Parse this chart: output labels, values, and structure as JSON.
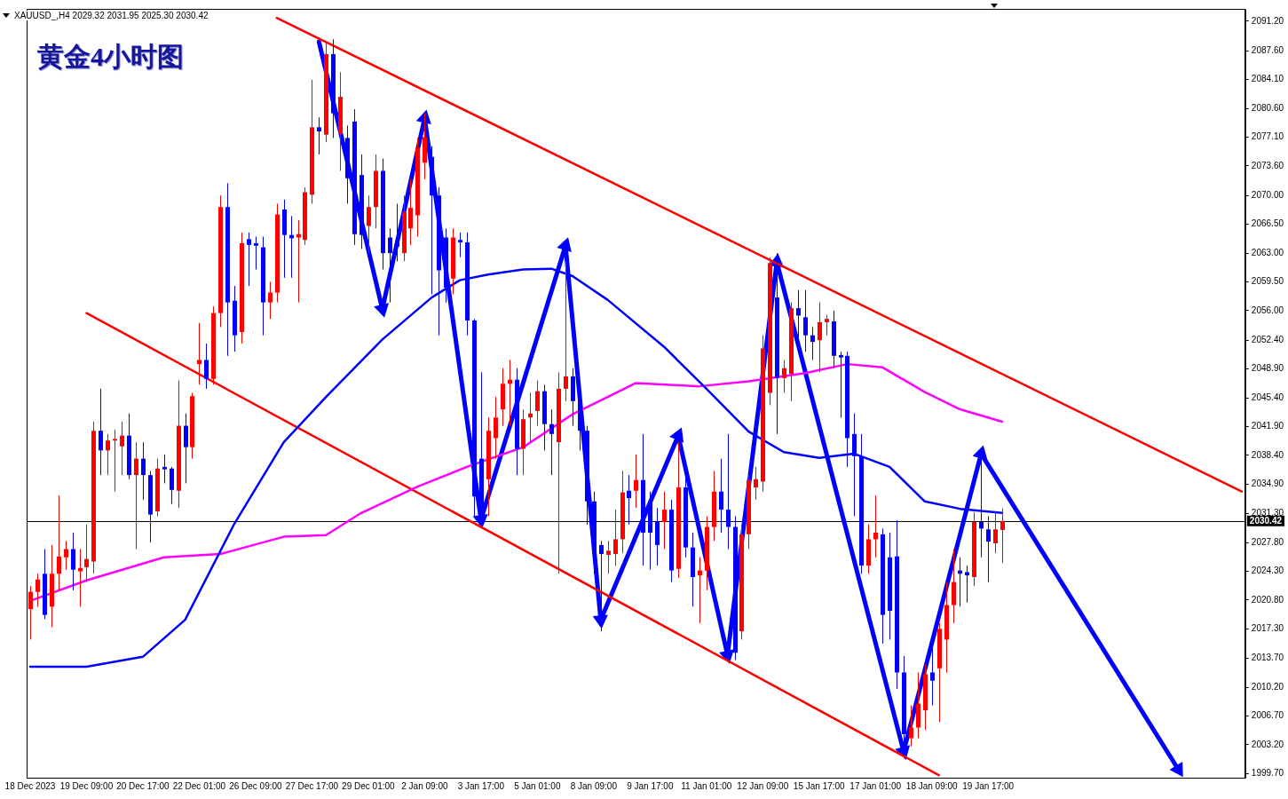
{
  "chart_data": {
    "type": "candlestick",
    "title": "黄金4小时图",
    "annotations": [
      "XAUUSD_,H4 2029.32 2031.95 2025.30 2030.42"
    ],
    "categories": [
      "18 Dec 2023",
      null,
      null,
      null,
      null,
      null,
      null,
      null,
      "19 Dec 09:00",
      null,
      null,
      null,
      null,
      null,
      null,
      null,
      "20 Dec 17:00",
      null,
      null,
      null,
      null,
      null,
      null,
      null,
      "22 Dec 01:00",
      null,
      null,
      null,
      null,
      null,
      null,
      null,
      "26 Dec 09:00",
      null,
      null,
      null,
      null,
      null,
      null,
      null,
      "27 Dec 17:00",
      null,
      null,
      null,
      null,
      null,
      null,
      null,
      "29 Dec 01:00",
      null,
      null,
      null,
      null,
      null,
      null,
      null,
      "2 Jan 09:00",
      null,
      null,
      null,
      null,
      null,
      null,
      null,
      "3 Jan 17:00",
      null,
      null,
      null,
      null,
      null,
      null,
      null,
      "5 Jan 01:00",
      null,
      null,
      null,
      null,
      null,
      null,
      null,
      "8 Jan 09:00",
      null,
      null,
      null,
      null,
      null,
      null,
      null,
      "9 Jan 17:00",
      null,
      null,
      null,
      null,
      null,
      null,
      null,
      "11 Jan 01:00",
      null,
      null,
      null,
      null,
      null,
      null,
      null,
      "12 Jan 09:00",
      null,
      null,
      null,
      null,
      null,
      null,
      null,
      "15 Jan 17:00",
      null,
      null,
      null,
      null,
      null,
      null,
      null,
      "17 Jan 01:00",
      null,
      null,
      null,
      null,
      null,
      null,
      null,
      "18 Jan 09:00",
      null,
      null,
      null,
      null,
      null,
      null,
      null,
      "19 Jan 17:00",
      null,
      null,
      null,
      null,
      null,
      null,
      null,
      null,
      null,
      null,
      null,
      null,
      null,
      null,
      null,
      null,
      null,
      null,
      null,
      null,
      null,
      null,
      null,
      null,
      null,
      null,
      null,
      null,
      null,
      null,
      null,
      null,
      null,
      null,
      null,
      null
    ],
    "ohlc": [
      [
        2019.7,
        2022.5,
        2016.0,
        2021.8
      ],
      [
        2021.8,
        2024.0,
        2020.0,
        2023.3
      ],
      [
        2024.0,
        2027.0,
        2018.5,
        2019.0
      ],
      [
        2020.0,
        2027.5,
        2017.5,
        2024.0
      ],
      [
        2024.0,
        2033.5,
        2022.0,
        2026.1
      ],
      [
        2026.0,
        2028.0,
        2024.5,
        2027.0
      ],
      [
        2027.0,
        2029.0,
        2022.0,
        2024.5
      ],
      [
        2024.3,
        2027.0,
        2020.0,
        2024.7
      ],
      [
        2024.8,
        2030.0,
        2023.0,
        2025.8
      ],
      [
        2025.5,
        2042.5,
        2024.0,
        2041.4
      ],
      [
        2041.4,
        2046.5,
        2036.0,
        2039.0
      ],
      [
        2039.0,
        2041.0,
        2036.0,
        2040.2
      ],
      [
        2040.2,
        2041.5,
        2034.0,
        2040.4
      ],
      [
        2039.5,
        2042.5,
        2036.0,
        2040.8
      ],
      [
        2040.8,
        2043.5,
        2035.5,
        2036.0
      ],
      [
        2036.0,
        2040.0,
        2027.0,
        2038.0
      ],
      [
        2038.0,
        2040.0,
        2033.0,
        2036.0
      ],
      [
        2036.0,
        2036.5,
        2027.8,
        2031.2
      ],
      [
        2031.6,
        2038.0,
        2031.0,
        2036.8
      ],
      [
        2037.0,
        2038.5,
        2035.0,
        2036.7
      ],
      [
        2036.8,
        2037.0,
        2032.5,
        2034.2
      ],
      [
        2034.1,
        2047.5,
        2032.0,
        2042.0
      ],
      [
        2042.0,
        2043.5,
        2035.0,
        2039.4
      ],
      [
        2039.4,
        2046.0,
        2038.0,
        2045.6
      ],
      [
        2049.5,
        2054.5,
        2047.0,
        2050.0
      ],
      [
        2050.0,
        2052.0,
        2046.5,
        2047.7
      ],
      [
        2047.7,
        2056.5,
        2047.0,
        2055.7
      ],
      [
        2055.7,
        2070.0,
        2054.0,
        2068.6
      ],
      [
        2068.6,
        2071.5,
        2050.5,
        2057.0
      ],
      [
        2057.2,
        2059.0,
        2051.0,
        2053.0
      ],
      [
        2053.4,
        2065.5,
        2052.0,
        2064.2
      ],
      [
        2064.7,
        2065.5,
        2059.0,
        2064.0
      ],
      [
        2064.2,
        2065.0,
        2061.0,
        2063.9
      ],
      [
        2063.7,
        2065.0,
        2053.0,
        2057.0
      ],
      [
        2057.0,
        2059.5,
        2055.0,
        2058.2
      ],
      [
        2058.2,
        2069.0,
        2057.0,
        2067.7
      ],
      [
        2068.3,
        2069.5,
        2060.0,
        2065.2
      ],
      [
        2065.2,
        2067.5,
        2060.0,
        2064.8
      ],
      [
        2064.9,
        2067.0,
        2057.0,
        2065.3
      ],
      [
        2064.6,
        2071.0,
        2064.0,
        2070.4
      ],
      [
        2070.1,
        2084.1,
        2069.0,
        2078.3
      ],
      [
        2078.3,
        2079.5,
        2075.0,
        2077.8
      ],
      [
        2077.4,
        2088.5,
        2076.5,
        2087.2
      ],
      [
        2087.2,
        2089.0,
        2077.0,
        2080.0
      ],
      [
        2077.5,
        2085.0,
        2073.0,
        2082.0
      ],
      [
        2077.0,
        2078.5,
        2069.0,
        2072.1
      ],
      [
        2079.0,
        2080.5,
        2064.0,
        2065.3
      ],
      [
        2072.5,
        2075.0,
        2063.5,
        2065.2
      ],
      [
        2066.3,
        2070.0,
        2063.0,
        2068.6
      ],
      [
        2068.6,
        2075.0,
        2066.0,
        2073.0
      ],
      [
        2073.0,
        2074.5,
        2061.0,
        2063.0
      ],
      [
        2064.9,
        2066.0,
        2057.0,
        2063.0
      ],
      [
        2064.5,
        2069.0,
        2062.0,
        2063.8
      ],
      [
        2063.0,
        2070.0,
        2062.0,
        2068.0
      ],
      [
        2066.0,
        2072.0,
        2064.0,
        2068.5
      ],
      [
        2067.6,
        2077.0,
        2065.0,
        2075.8
      ],
      [
        2074.0,
        2080.0,
        2072.0,
        2077.1
      ],
      [
        2074.7,
        2076.0,
        2058.0,
        2070.0
      ],
      [
        2070.0,
        2071.0,
        2053.0,
        2060.9
      ],
      [
        2064.9,
        2066.0,
        2057.0,
        2058.8
      ],
      [
        2059.9,
        2066.0,
        2058.0,
        2064.9
      ],
      [
        2064.6,
        2065.5,
        2062.5,
        2064.3
      ],
      [
        2064.3,
        2065.5,
        2053.0,
        2054.8
      ],
      [
        2054.8,
        2055.0,
        2031.0,
        2033.4
      ],
      [
        2038.0,
        2048.5,
        2030.0,
        2032.0
      ],
      [
        2035.5,
        2043.0,
        2031.0,
        2041.4
      ],
      [
        2040.5,
        2045.5,
        2038.0,
        2043.0
      ],
      [
        2044.0,
        2049.0,
        2042.0,
        2047.1
      ],
      [
        2047.1,
        2050.0,
        2042.0,
        2047.6
      ],
      [
        2047.6,
        2049.0,
        2036.0,
        2039.2
      ],
      [
        2039.2,
        2044.0,
        2036.0,
        2042.8
      ],
      [
        2043.0,
        2046.0,
        2040.0,
        2043.5
      ],
      [
        2043.8,
        2047.5,
        2042.0,
        2046.2
      ],
      [
        2046.2,
        2047.0,
        2039.0,
        2042.2
      ],
      [
        2042.2,
        2044.0,
        2036.0,
        2041.0
      ],
      [
        2040.0,
        2048.5,
        2024.0,
        2046.5
      ],
      [
        2046.5,
        2062.0,
        2045.0,
        2048.0
      ],
      [
        2048.0,
        2049.0,
        2042.0,
        2045.0
      ],
      [
        2045.0,
        2046.0,
        2039.0,
        2041.4
      ],
      [
        2041.4,
        2042.0,
        2030.0,
        2032.8
      ],
      [
        2032.8,
        2034.0,
        2024.0,
        2026.5
      ],
      [
        2027.5,
        2028.0,
        2017.0,
        2026.4
      ],
      [
        2026.3,
        2028.0,
        2024.0,
        2026.8
      ],
      [
        2026.4,
        2031.8,
        2025.0,
        2028.2
      ],
      [
        2028.2,
        2036.5,
        2026.5,
        2033.9
      ],
      [
        2034.1,
        2036.0,
        2030.0,
        2033.2
      ],
      [
        2034.1,
        2038.5,
        2032.0,
        2035.4
      ],
      [
        2035.4,
        2041.0,
        2025.0,
        2029.0
      ],
      [
        2032.8,
        2034.0,
        2024.5,
        2029.0
      ],
      [
        2030.3,
        2032.0,
        2025.0,
        2027.5
      ],
      [
        2030.3,
        2034.0,
        2027.0,
        2031.8
      ],
      [
        2031.8,
        2033.0,
        2023.0,
        2024.4
      ],
      [
        2024.6,
        2040.0,
        2023.5,
        2034.5
      ],
      [
        2034.5,
        2036.0,
        2026.0,
        2027.2
      ],
      [
        2027.2,
        2029.0,
        2020.0,
        2023.6
      ],
      [
        2023.8,
        2026.0,
        2018.0,
        2024.4
      ],
      [
        2024.4,
        2031.0,
        2022.0,
        2029.7
      ],
      [
        2029.7,
        2036.5,
        2028.0,
        2034.0
      ],
      [
        2034.0,
        2038.0,
        2029.0,
        2031.8
      ],
      [
        2031.8,
        2041.0,
        2027.0,
        2029.7
      ],
      [
        2029.7,
        2031.0,
        2013.5,
        2014.4
      ],
      [
        2017.0,
        2030.0,
        2016.0,
        2028.8
      ],
      [
        2028.8,
        2036.0,
        2027.0,
        2035.4
      ],
      [
        2034.5,
        2037.0,
        2033.0,
        2035.5
      ],
      [
        2035.2,
        2053.0,
        2034.0,
        2051.4
      ],
      [
        2046.0,
        2062.5,
        2044.5,
        2061.8
      ],
      [
        2057.6,
        2063.0,
        2041.0,
        2047.8
      ],
      [
        2047.8,
        2050.0,
        2046.0,
        2049.0
      ],
      [
        2048.3,
        2057.0,
        2045.0,
        2056.3
      ],
      [
        2056.3,
        2058.5,
        2052.0,
        2055.4
      ],
      [
        2055.2,
        2058.5,
        2051.0,
        2053.0
      ],
      [
        2053.0,
        2054.0,
        2050.0,
        2052.2
      ],
      [
        2052.4,
        2057.0,
        2048.5,
        2054.6
      ],
      [
        2054.6,
        2055.5,
        2053.0,
        2055.0
      ],
      [
        2054.7,
        2056.0,
        2049.0,
        2050.5
      ],
      [
        2050.6,
        2051.0,
        2043.0,
        2050.3
      ],
      [
        2050.5,
        2051.0,
        2037.0,
        2040.5
      ],
      [
        2041.0,
        2043.5,
        2031.0,
        2038.3
      ],
      [
        2038.3,
        2041.0,
        2024.0,
        2025.0
      ],
      [
        2025.0,
        2030.0,
        2024.0,
        2028.2
      ],
      [
        2028.2,
        2033.5,
        2026.0,
        2029.0
      ],
      [
        2028.8,
        2029.5,
        2015.5,
        2019.0
      ],
      [
        2026.0,
        2029.0,
        2016.0,
        2019.5
      ],
      [
        2026.1,
        2030.5,
        2010.0,
        2012.0
      ],
      [
        2012.0,
        2014.0,
        2003.0,
        2004.5
      ],
      [
        2004.0,
        2008.0,
        2003.0,
        2005.3
      ],
      [
        2005.3,
        2012.0,
        2004.0,
        2008.2
      ],
      [
        2007.4,
        2013.0,
        2005.0,
        2011.8
      ],
      [
        2012.0,
        2015.0,
        2008.0,
        2011.0
      ],
      [
        2012.5,
        2018.0,
        2006.0,
        2017.3
      ],
      [
        2016.0,
        2023.0,
        2012.0,
        2020.2
      ],
      [
        2020.2,
        2027.0,
        2018.0,
        2023.0
      ],
      [
        2024.4,
        2026.0,
        2020.0,
        2024.0
      ],
      [
        2024.2,
        2025.0,
        2020.5,
        2023.8
      ],
      [
        2023.6,
        2031.5,
        2022.5,
        2030.3
      ],
      [
        2030.3,
        2038.5,
        2026.0,
        2029.5
      ],
      [
        2029.4,
        2031.0,
        2023.0,
        2027.9
      ],
      [
        2027.7,
        2031.5,
        2026.5,
        2029.4
      ],
      [
        2029.32,
        2031.95,
        2025.3,
        2030.42
      ],
      null,
      null,
      null,
      null,
      null,
      null,
      null,
      null,
      null,
      null,
      null,
      null,
      null,
      null,
      null,
      null,
      null,
      null,
      null,
      null,
      null,
      null,
      null,
      null,
      null,
      null,
      null,
      null,
      null,
      null,
      null,
      null,
      null,
      null
    ],
    "colors": [
      "#ff0000",
      "#ff0000",
      "#0000ff",
      "#ff0000",
      "#ff0000",
      "#ff0000",
      "#0000ff",
      "#ff0000",
      "#ff0000",
      "#ff0000",
      "#0000ff",
      "#ff0000",
      "#ff0000",
      "#ff0000",
      "#0000ff",
      "#ff0000",
      "#0000ff",
      "#0000ff",
      "#ff0000",
      "#0000ff",
      "#0000ff",
      "#ff0000",
      "#0000ff",
      "#ff0000",
      "#ff0000",
      "#0000ff",
      "#ff0000",
      "#ff0000",
      "#0000ff",
      "#0000ff",
      "#ff0000",
      "#0000ff",
      "#0000ff",
      "#0000ff",
      "#ff0000",
      "#ff0000",
      "#0000ff",
      "#0000ff",
      "#ff0000",
      "#ff0000",
      "#ff0000",
      "#0000ff",
      "#ff0000",
      "#0000ff",
      "#ff0000",
      "#0000ff",
      "#0000ff",
      "#0000ff",
      "#ff0000",
      "#ff0000",
      "#0000ff",
      "#0000ff",
      "#0000ff",
      "#ff0000",
      "#ff0000",
      "#ff0000",
      "#ff0000",
      "#0000ff",
      "#0000ff",
      "#0000ff",
      "#ff0000",
      "#0000ff",
      "#0000ff",
      "#0000ff",
      "#0000ff",
      "#ff0000",
      "#ff0000",
      "#ff0000",
      "#ff0000",
      "#0000ff",
      "#ff0000",
      "#ff0000",
      "#ff0000",
      "#0000ff",
      "#0000ff",
      "#ff0000",
      "#ff0000",
      "#0000ff",
      "#0000ff",
      "#0000ff",
      "#0000ff",
      "#0000ff",
      "#ff0000",
      "#ff0000",
      "#ff0000",
      "#0000ff",
      "#ff0000",
      "#0000ff",
      "#0000ff",
      "#0000ff",
      "#ff0000",
      "#0000ff",
      "#ff0000",
      "#0000ff",
      "#0000ff",
      "#ff0000",
      "#ff0000",
      "#ff0000",
      "#0000ff",
      "#0000ff",
      "#0000ff",
      "#ff0000",
      "#ff0000",
      "#ff0000",
      "#ff0000",
      "#ff0000",
      "#0000ff",
      "#ff0000",
      "#ff0000",
      "#0000ff",
      "#0000ff",
      "#0000ff",
      "#ff0000",
      "#ff0000",
      "#0000ff",
      "#0000ff",
      "#0000ff",
      "#0000ff",
      "#0000ff",
      "#ff0000",
      "#ff0000",
      "#0000ff",
      "#0000ff",
      "#0000ff",
      "#0000ff",
      "#ff0000",
      "#ff0000",
      "#ff0000",
      "#0000ff",
      "#ff0000",
      "#ff0000",
      "#ff0000",
      "#0000ff",
      "#0000ff",
      "#ff0000",
      "#0000ff",
      "#0000ff",
      "#ff0000",
      "#ff0000",
      null,
      null,
      null,
      null,
      null,
      null,
      null,
      null,
      null,
      null,
      null,
      null,
      null,
      null,
      null,
      null,
      null,
      null,
      null,
      null,
      null,
      null,
      null,
      null,
      null,
      null,
      null,
      null,
      null,
      null,
      null,
      null,
      null,
      null
    ],
    "series": [
      {
        "type": "line",
        "color": "#0000ff",
        "values": [
          2012.7,
          null,
          null,
          null,
          null,
          null,
          null,
          null,
          2012.7,
          null,
          null,
          null,
          null,
          null,
          null,
          null,
          2013.9,
          null,
          null,
          null,
          null,
          null,
          2018.4,
          null,
          null,
          null,
          null,
          null,
          null,
          2030.1,
          null,
          null,
          null,
          null,
          null,
          null,
          2040.0,
          null,
          null,
          null,
          null,
          null,
          2045.5,
          null,
          null,
          null,
          null,
          null,
          null,
          null,
          2052.5,
          null,
          null,
          null,
          null,
          null,
          null,
          2057.6,
          null,
          null,
          null,
          2059.7,
          null,
          null,
          null,
          2060.4,
          null,
          null,
          null,
          null,
          2061.0,
          null,
          null,
          null,
          2061.1,
          null,
          null,
          2060.2,
          null,
          null,
          null,
          null,
          2057.3,
          null,
          null,
          null,
          null,
          null,
          null,
          null,
          2051.6,
          null,
          null,
          null,
          null,
          null,
          2046.5,
          null,
          null,
          null,
          null,
          null,
          2041.3,
          null,
          null,
          null,
          null,
          2038.8,
          null,
          null,
          null,
          null,
          2038.1,
          null,
          null,
          null,
          null,
          2038.6,
          null,
          null,
          null,
          null,
          2037.0,
          null,
          null,
          null,
          null,
          2032.8,
          null,
          null,
          null,
          null,
          2031.9,
          null,
          null,
          null,
          null,
          null,
          2031.4,
          null,
          null,
          null,
          null,
          null,
          null,
          null,
          null,
          null,
          null,
          null,
          null,
          null,
          null,
          null,
          null,
          null,
          null,
          null,
          null,
          null,
          null,
          null,
          null,
          null,
          null,
          null,
          null,
          null,
          null,
          null,
          null,
          null,
          null
        ]
      },
      {
        "type": "line",
        "color": "#ff00ff",
        "values": [
          2020.7,
          null,
          null,
          null,
          null,
          null,
          null,
          null,
          2023.2,
          null,
          null,
          null,
          null,
          null,
          null,
          null,
          null,
          null,
          null,
          2026.0,
          null,
          null,
          null,
          null,
          null,
          null,
          null,
          2026.4,
          null,
          null,
          null,
          null,
          null,
          null,
          null,
          null,
          2028.5,
          null,
          null,
          null,
          null,
          null,
          2028.7,
          null,
          null,
          null,
          null,
          2031.4,
          null,
          null,
          null,
          null,
          null,
          null,
          null,
          2034.6,
          null,
          null,
          null,
          null,
          null,
          null,
          2037.0,
          null,
          null,
          null,
          null,
          null,
          null,
          null,
          2039.4,
          null,
          null,
          null,
          null,
          null,
          null,
          2043.4,
          null,
          null,
          null,
          null,
          null,
          null,
          null,
          null,
          2047.2,
          null,
          null,
          null,
          null,
          null,
          null,
          null,
          null,
          2046.8,
          null,
          null,
          null,
          null,
          null,
          null,
          2047.4,
          null,
          null,
          null,
          null,
          null,
          null,
          null,
          2048.4,
          null,
          null,
          null,
          null,
          null,
          2049.5,
          null,
          null,
          null,
          null,
          2049.1,
          null,
          null,
          null,
          null,
          null,
          2046.1,
          null,
          null,
          null,
          null,
          2044.0,
          null,
          null,
          null,
          null,
          null,
          2042.5,
          null,
          null,
          null,
          null,
          null,
          null,
          null,
          null,
          null,
          null,
          null,
          null,
          null,
          null,
          null,
          null,
          null,
          null,
          null,
          null,
          null,
          null,
          null,
          null,
          null,
          null,
          null,
          null,
          null,
          null,
          null,
          null,
          null,
          null
        ]
      },
      {
        "type": "line",
        "color": "#ff0000",
        "values": [
          null,
          null,
          null,
          null,
          null,
          null,
          null,
          null,
          null,
          null,
          null,
          null,
          null,
          null,
          null,
          null,
          null,
          null,
          null,
          null,
          null,
          null,
          null,
          null,
          null,
          null,
          null,
          null,
          null,
          null,
          null,
          null,
          null,
          null,
          null,
          2091.6,
          null,
          null,
          null,
          null,
          null,
          null,
          null,
          null,
          null,
          null,
          null,
          null,
          null,
          null,
          null,
          null,
          null,
          null,
          null,
          null,
          null,
          null,
          null,
          null,
          null,
          null,
          null,
          null,
          null,
          null,
          null,
          null,
          null,
          null,
          null,
          null,
          null,
          null,
          null,
          null,
          null,
          null,
          null,
          null,
          null,
          null,
          null,
          null,
          null,
          null,
          null,
          null,
          null,
          null,
          null,
          null,
          null,
          null,
          null,
          null,
          null,
          null,
          null,
          null,
          null,
          null,
          null,
          null,
          null,
          null,
          null,
          null,
          null,
          null,
          null,
          null,
          null,
          null,
          null,
          null,
          null,
          null,
          null,
          null,
          null,
          null,
          null,
          null,
          null,
          null,
          null,
          null,
          null,
          null,
          null,
          null,
          null,
          null,
          null,
          null,
          null,
          null,
          null,
          null,
          null,
          null,
          null,
          null,
          null,
          null,
          null,
          null,
          null,
          null,
          null,
          null,
          null,
          null,
          null,
          null,
          null,
          null,
          null,
          null,
          null,
          null,
          null,
          null,
          null,
          null,
          null,
          null,
          null,
          null,
          null,
          null,
          2034.0
        ]
      },
      {
        "type": "line",
        "color": "#ff0000",
        "values": [
          null,
          null,
          null,
          null,
          null,
          null,
          null,
          null,
          2055.7,
          null,
          null,
          null,
          null,
          null,
          null,
          null,
          null,
          null,
          null,
          null,
          null,
          null,
          null,
          null,
          null,
          null,
          null,
          null,
          null,
          null,
          null,
          null,
          null,
          null,
          null,
          null,
          null,
          null,
          null,
          null,
          null,
          null,
          null,
          null,
          null,
          null,
          null,
          null,
          null,
          null,
          null,
          null,
          null,
          null,
          null,
          null,
          null,
          null,
          null,
          null,
          null,
          null,
          null,
          null,
          null,
          null,
          null,
          null,
          null,
          null,
          null,
          null,
          null,
          null,
          null,
          null,
          null,
          null,
          null,
          null,
          null,
          null,
          null,
          null,
          null,
          null,
          null,
          null,
          null,
          null,
          null,
          null,
          null,
          null,
          null,
          null,
          null,
          null,
          null,
          null,
          null,
          null,
          null,
          null,
          null,
          null,
          null,
          null,
          null,
          null,
          null,
          null,
          null,
          null,
          null,
          null,
          null,
          null,
          null,
          null,
          null,
          null,
          null,
          null,
          null,
          null,
          null,
          null,
          null,
          1999.5,
          null,
          null,
          null,
          null,
          null,
          null,
          null,
          null,
          null,
          null,
          null,
          null,
          null,
          null,
          null,
          null,
          null,
          null,
          null,
          null,
          null,
          null,
          null,
          null,
          null,
          null,
          null,
          null,
          null,
          null,
          null,
          null,
          null,
          null,
          null,
          null,
          null,
          null,
          null,
          null,
          null,
          null,
          null
        ]
      },
      {
        "type": "line",
        "color": "#0000ff",
        "marker": "triangle",
        "values": [
          null,
          null,
          null,
          null,
          null,
          null,
          null,
          null,
          null,
          null,
          null,
          null,
          null,
          null,
          null,
          null,
          null,
          null,
          null,
          null,
          null,
          null,
          null,
          null,
          null,
          null,
          null,
          null,
          null,
          null,
          null,
          null,
          null,
          null,
          null,
          null,
          null,
          null,
          null,
          null,
          null,
          2088.7,
          null,
          null,
          null,
          null,
          null,
          null,
          null,
          null,
          2056.2,
          null,
          null,
          null,
          null,
          null,
          2079.4,
          null,
          null,
          null,
          null,
          null,
          null,
          null,
          2030.6,
          null,
          null,
          null,
          null,
          null,
          null,
          null,
          null,
          null,
          null,
          null,
          2063.9,
          null,
          null,
          null,
          null,
          2018.4,
          null,
          null,
          null,
          null,
          null,
          null,
          null,
          null,
          null,
          null,
          2040.8,
          null,
          null,
          null,
          null,
          null,
          null,
          2014.1,
          null,
          null,
          null,
          null,
          null,
          null,
          2061.9,
          null,
          null,
          null,
          null,
          null,
          null,
          null,
          null,
          null,
          null,
          null,
          null,
          null,
          null,
          null,
          null,
          null,
          2002.4,
          null,
          null,
          null,
          null,
          null,
          null,
          null,
          null,
          null,
          null,
          2038.6,
          null,
          null,
          null,
          null,
          null,
          null,
          null,
          null,
          null,
          null,
          null,
          null,
          null,
          null,
          null,
          null,
          null,
          null,
          null,
          null,
          null,
          null,
          null,
          null,
          null,
          null,
          null,
          2000.2,
          null,
          null,
          null,
          null,
          null,
          null,
          null,
          null,
          null
        ]
      }
    ],
    "ylim": [
      1999.2,
      2092.7
    ],
    "yticks": [
      {
        "value": 1999.7,
        "label": "1999.70"
      },
      {
        "value": 2003.2,
        "label": "2003.20"
      },
      {
        "value": 2006.7,
        "label": "2006.70"
      },
      {
        "value": 2010.2,
        "label": "2010.20"
      },
      {
        "value": 2013.7,
        "label": "2013.70"
      },
      {
        "value": 2017.3,
        "label": "2017.30"
      },
      {
        "value": 2020.8,
        "label": "2020.80"
      },
      {
        "value": 2024.3,
        "label": "2024.30"
      },
      {
        "value": 2027.8,
        "label": "2027.80"
      },
      {
        "value": 2031.3,
        "label": "2031.30"
      },
      {
        "value": 2034.9,
        "label": "2034.90"
      },
      {
        "value": 2038.4,
        "label": "2038.40"
      },
      {
        "value": 2041.9,
        "label": "2041.90"
      },
      {
        "value": 2045.4,
        "label": "2045.40"
      },
      {
        "value": 2048.9,
        "label": "2048.90"
      },
      {
        "value": 2052.4,
        "label": "2052.40"
      },
      {
        "value": 2056,
        "label": "2056.00"
      },
      {
        "value": 2059.5,
        "label": "2059.50"
      },
      {
        "value": 2063,
        "label": "2063.00"
      },
      {
        "value": 2066.5,
        "label": "2066.50"
      },
      {
        "value": 2070,
        "label": "2070.00"
      },
      {
        "value": 2073.6,
        "label": "2073.60"
      },
      {
        "value": 2077.1,
        "label": "2077.10"
      },
      {
        "value": 2080.6,
        "label": "2080.60"
      },
      {
        "value": 2084.1,
        "label": "2084.10"
      },
      {
        "value": 2087.6,
        "label": "2087.60"
      },
      {
        "value": 2091.2,
        "label": "2091.20"
      }
    ],
    "ref_lines": [
      {
        "axis": "y",
        "value": 2030.42,
        "label": "2030.42",
        "color": "#000000"
      }
    ],
    "legend": false
  }
}
